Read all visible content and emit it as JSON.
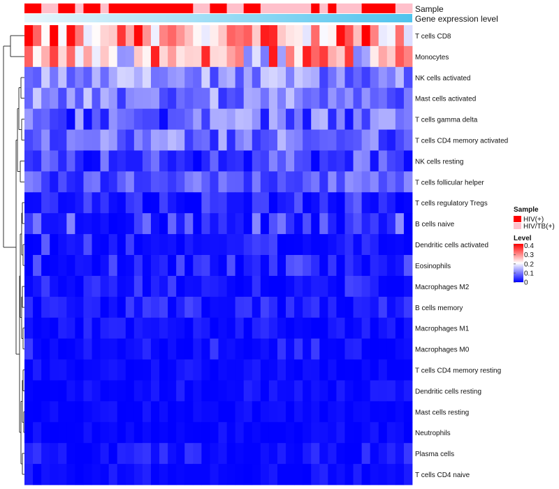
{
  "chart_data": {
    "type": "heatmap",
    "annotation_labels": [
      "Sample",
      "Gene expression level"
    ],
    "rows": [
      "T cells CD8",
      "Monocytes",
      "NK cells activated",
      "Mast cells activated",
      "T cells gamma delta",
      "T cells CD4 memory activated",
      "NK cells resting",
      "T cells follicular helper",
      "T cells regulatory  Tregs",
      "B cells naive",
      "Dendritic cells activated",
      "Eosinophils",
      "Macrophages M2",
      "B cells memory",
      "Macrophages M1",
      "Macrophages M0",
      "T cells CD4 memory resting",
      "Dendritic cells resting",
      "Mast cells resting",
      "Neutrophils",
      "Plasma cells",
      "T cells CD4 naive"
    ],
    "n_columns": 46,
    "sample_groups": [
      "HIV(+)",
      "HIV(+)",
      "HIV/TB(+)",
      "HIV/TB(+)",
      "HIV(+)",
      "HIV(+)",
      "HIV/TB(+)",
      "HIV(+)",
      "HIV(+)",
      "HIV/TB(+)",
      "HIV(+)",
      "HIV(+)",
      "HIV(+)",
      "HIV(+)",
      "HIV(+)",
      "HIV(+)",
      "HIV(+)",
      "HIV(+)",
      "HIV(+)",
      "HIV(+)",
      "HIV/TB(+)",
      "HIV/TB(+)",
      "HIV(+)",
      "HIV(+)",
      "HIV/TB(+)",
      "HIV/TB(+)",
      "HIV(+)",
      "HIV(+)",
      "HIV/TB(+)",
      "HIV/TB(+)",
      "HIV/TB(+)",
      "HIV/TB(+)",
      "HIV/TB(+)",
      "HIV/TB(+)",
      "HIV(+)",
      "HIV/TB(+)",
      "HIV(+)",
      "HIV/TB(+)",
      "HIV/TB(+)",
      "HIV/TB(+)",
      "HIV(+)",
      "HIV(+)",
      "HIV(+)",
      "HIV(+)",
      "HIV/TB(+)",
      "HIV/TB(+)"
    ],
    "expression_level": "increasing across columns (light to sky blue)",
    "row_level_ranges": [
      [
        0.18,
        0.42
      ],
      [
        0.1,
        0.4
      ],
      [
        0.05,
        0.18
      ],
      [
        0.04,
        0.17
      ],
      [
        0.0,
        0.16
      ],
      [
        0.02,
        0.16
      ],
      [
        0.0,
        0.12
      ],
      [
        0.01,
        0.12
      ],
      [
        0.0,
        0.08
      ],
      [
        0.0,
        0.12
      ],
      [
        0.0,
        0.08
      ],
      [
        0.0,
        0.08
      ],
      [
        0.0,
        0.06
      ],
      [
        0.0,
        0.06
      ],
      [
        0.0,
        0.04
      ],
      [
        0.0,
        0.05
      ],
      [
        0.0,
        0.03
      ],
      [
        0.0,
        0.03
      ],
      [
        0.0,
        0.02
      ],
      [
        0.0,
        0.02
      ],
      [
        0.0,
        0.05
      ],
      [
        0.0,
        0.03
      ]
    ],
    "color_scale": {
      "min": 0,
      "max": 0.42,
      "low_color": "#0000FF",
      "mid_color": "#FFFFFF",
      "high_color": "#FF0000",
      "mid_value": 0.21,
      "ticks": [
        0.4,
        0.3,
        0.2,
        0.1,
        0
      ]
    },
    "legend": {
      "sample_title": "Sample",
      "sample_entries": [
        {
          "label": "HIV(+)",
          "color": "#FF0000"
        },
        {
          "label": "HIV/TB(+)",
          "color": "#FFC0CB"
        }
      ],
      "level_title": "Level"
    },
    "row_dendrogram": true,
    "column_clustering": false
  }
}
